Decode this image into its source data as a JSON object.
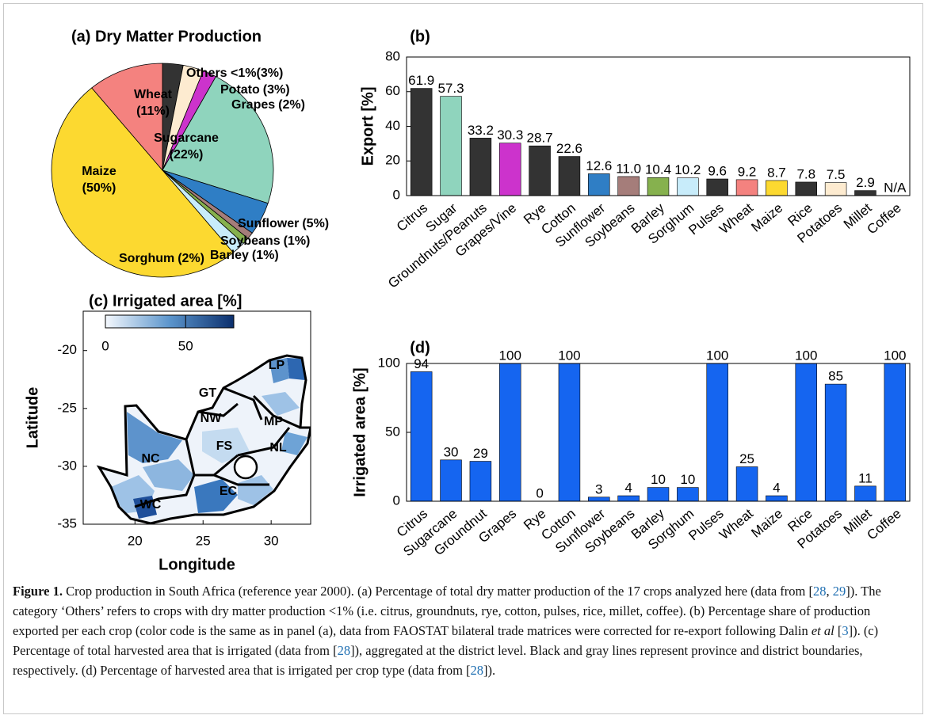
{
  "chart_data": [
    {
      "type": "pie",
      "title": "(a) Dry Matter Production",
      "categories": [
        "Others <1%",
        "Potato",
        "Grapes",
        "Sugarcane",
        "Sunflower",
        "Soybeans",
        "Barley",
        "Sorghum",
        "Maize",
        "Wheat"
      ],
      "values": [
        3,
        3,
        2,
        22,
        5,
        1,
        1,
        2,
        50,
        11
      ],
      "value_labels": [
        "(3%)",
        "(3%)",
        "(2%)",
        "(22%)",
        "(5%)",
        "(1%)",
        "(1%)",
        "(2%)",
        "(50%)",
        "(11%)"
      ],
      "colors": [
        "#333333",
        "#fdebd0",
        "#cc33cc",
        "#8fd4bd",
        "#2f7ec5",
        "#a57d7a",
        "#86b14e",
        "#c8ecfa",
        "#fcd930",
        "#f4827f"
      ]
    },
    {
      "type": "bar",
      "title": "(b)",
      "ylabel": "Export [%]",
      "categories": [
        "Citrus",
        "Sugar",
        "Groundnuts/Peanuts",
        "Grapes/Vine",
        "Rye",
        "Cotton",
        "Sunflower",
        "Soybeans",
        "Barley",
        "Sorghum",
        "Pulses",
        "Wheat",
        "Maize",
        "Rice",
        "Potatoes",
        "Millet",
        "Coffee"
      ],
      "values": [
        61.9,
        57.3,
        33.2,
        30.3,
        28.7,
        22.6,
        12.6,
        11.0,
        10.4,
        10.2,
        9.6,
        9.2,
        8.7,
        7.8,
        7.5,
        2.9,
        null
      ],
      "value_labels": [
        "61.9",
        "57.3",
        "33.2",
        "30.3",
        "28.7",
        "22.6",
        "12.6",
        "11.0",
        "10.4",
        "10.2",
        "9.6",
        "9.2",
        "8.7",
        "7.8",
        "7.5",
        "2.9",
        "N/A"
      ],
      "colors": [
        "#333333",
        "#8fd4bd",
        "#333333",
        "#cc33cc",
        "#333333",
        "#333333",
        "#2f7ec5",
        "#a57d7a",
        "#86b14e",
        "#c8ecfa",
        "#333333",
        "#f4827f",
        "#fcd930",
        "#333333",
        "#fdebd0",
        "#333333",
        "#333333"
      ],
      "ylim": [
        0,
        80
      ],
      "yticks": [
        0,
        20,
        40,
        60,
        80
      ]
    },
    {
      "type": "map",
      "title": "(c) Irrigated area [%]",
      "xlabel": "Longitude",
      "ylabel": "Latitude",
      "xlim": [
        16.2,
        32.9
      ],
      "xticks": [
        20,
        25,
        30
      ],
      "ylim": [
        -35,
        -16.6
      ],
      "yticks": [
        -20,
        -25,
        -30,
        -35
      ],
      "clim": [
        0,
        80
      ],
      "cticks": [
        0,
        50
      ],
      "regions": [
        "GT",
        "LP",
        "NW",
        "MP",
        "FS",
        "NL",
        "NC",
        "EC",
        "WC"
      ]
    },
    {
      "type": "bar",
      "title": "(d)",
      "ylabel": "Irrigated area [%]",
      "categories": [
        "Citrus",
        "Sugarcane",
        "Groundnut",
        "Grapes",
        "Rye",
        "Cotton",
        "Sunflower",
        "Soybeans",
        "Barley",
        "Sorghum",
        "Pulses",
        "Wheat",
        "Maize",
        "Rice",
        "Potatoes",
        "Millet",
        "Coffee"
      ],
      "values": [
        94,
        30,
        29,
        100,
        0,
        100,
        3,
        4,
        10,
        10,
        100,
        25,
        4,
        100,
        85,
        11,
        100
      ],
      "color": "#1565f0",
      "ylim": [
        0,
        100
      ],
      "yticks": [
        0,
        50,
        100
      ]
    }
  ],
  "caption": {
    "label": "Figure 1.",
    "segments": [
      "Crop production in South Africa (reference year 2000). (a) Percentage of total dry matter production of the 17 crops analyzed here (data from [",
      "28",
      ", ",
      "29",
      "]). The category ‘Others’ refers to crops with dry matter production <1% (i.e. citrus, groundnuts, rye, cotton, pulses, rice, millet, coffee). (b) Percentage share of production exported per each crop (color code is the same as in panel (a), data from FAOSTAT bilateral trade matrices were corrected for re-export following Dalin ",
      "et al",
      " [",
      "3",
      "]). (c) Percentage of total harvested area that is irrigated (data from [",
      "28",
      "]), aggregated at the district level. Black and gray lines represent province and district boundaries, respectively. (d) Percentage of harvested area that is irrigated per crop type (data from [",
      "28",
      "])."
    ]
  }
}
